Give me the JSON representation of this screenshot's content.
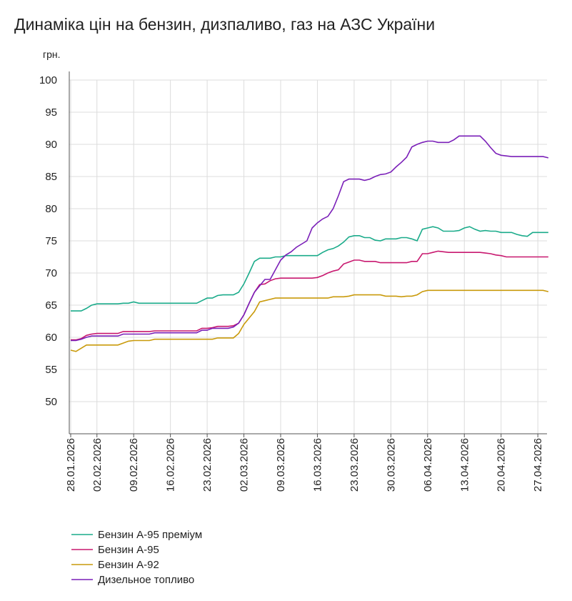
{
  "chart_data": {
    "type": "line",
    "title": "Динаміка цін на бензин, дизпаливо, газ на АЗС України",
    "y_unit": "грн.",
    "categories": [
      "28.01.2026",
      null,
      null,
      null,
      null,
      "02.02.2026",
      null,
      null,
      null,
      null,
      null,
      null,
      "09.02.2026",
      null,
      null,
      null,
      null,
      null,
      null,
      "16.02.2026",
      null,
      null,
      null,
      null,
      null,
      null,
      "23.02.2026",
      null,
      null,
      null,
      null,
      null,
      null,
      "02.03.2026",
      null,
      null,
      null,
      null,
      null,
      null,
      "09.03.2026",
      null,
      null,
      null,
      null,
      null,
      null,
      "16.03.2026",
      null,
      null,
      null,
      null,
      null,
      null,
      "23.03.2026",
      null,
      null,
      null,
      null,
      null,
      null,
      "30.03.2026",
      null,
      null,
      null,
      null,
      null,
      null,
      "06.04.2026",
      null,
      null,
      null,
      null,
      null,
      null,
      "13.04.2026",
      null,
      null,
      null,
      null,
      null,
      null,
      "20.04.2026",
      null,
      null,
      null,
      null,
      null,
      null,
      "27.04.2026",
      null,
      null
    ],
    "series": [
      {
        "name": "Бензин А-95 преміум",
        "color": "#1aab8a",
        "values": [
          64.1,
          64.1,
          64.1,
          64.5,
          65,
          65.2,
          65.2,
          65.2,
          65.2,
          65.2,
          65.3,
          65.3,
          65.5,
          65.3,
          65.3,
          65.3,
          65.3,
          65.3,
          65.3,
          65.3,
          65.3,
          65.3,
          65.3,
          65.3,
          65.3,
          65.7,
          66.1,
          66.1,
          66.5,
          66.6,
          66.6,
          66.6,
          67,
          68.3,
          70,
          71.8,
          72.3,
          72.3,
          72.3,
          72.5,
          72.5,
          72.7,
          72.7,
          72.7,
          72.7,
          72.7,
          72.7,
          72.7,
          73.2,
          73.6,
          73.8,
          74.2,
          74.8,
          75.6,
          75.8,
          75.8,
          75.5,
          75.5,
          75.1,
          75,
          75.3,
          75.3,
          75.3,
          75.5,
          75.5,
          75.3,
          75,
          76.8,
          77,
          77.2,
          77,
          76.5,
          76.5,
          76.5,
          76.6,
          77,
          77.2,
          76.8,
          76.5,
          76.6,
          76.5,
          76.5,
          76.3,
          76.3,
          76.3,
          76,
          75.8,
          75.7,
          76.3,
          76.3,
          76.3,
          76.3
        ]
      },
      {
        "name": "Бензин А-95",
        "color": "#c8186f",
        "values": [
          59.6,
          59.6,
          59.8,
          60.3,
          60.5,
          60.6,
          60.6,
          60.6,
          60.6,
          60.6,
          60.9,
          60.9,
          60.9,
          60.9,
          60.9,
          60.9,
          61,
          61,
          61,
          61,
          61,
          61,
          61,
          61,
          61,
          61.4,
          61.4,
          61.5,
          61.7,
          61.7,
          61.7,
          61.8,
          62.2,
          63.5,
          65.3,
          67,
          68.2,
          68.3,
          68.8,
          69.1,
          69.2,
          69.2,
          69.2,
          69.2,
          69.2,
          69.2,
          69.2,
          69.3,
          69.6,
          70,
          70.3,
          70.5,
          71.4,
          71.7,
          72,
          72,
          71.8,
          71.8,
          71.8,
          71.6,
          71.6,
          71.6,
          71.6,
          71.6,
          71.6,
          71.8,
          71.8,
          73,
          73,
          73.2,
          73.4,
          73.3,
          73.2,
          73.2,
          73.2,
          73.2,
          73.2,
          73.2,
          73.2,
          73.1,
          73,
          72.8,
          72.7,
          72.5,
          72.5,
          72.5,
          72.5,
          72.5,
          72.5,
          72.5,
          72.5,
          72.5
        ]
      },
      {
        "name": "Бензин А-92",
        "color": "#c99a0b",
        "values": [
          58,
          57.8,
          58.3,
          58.8,
          58.8,
          58.8,
          58.8,
          58.8,
          58.8,
          58.8,
          59.1,
          59.4,
          59.5,
          59.5,
          59.5,
          59.5,
          59.7,
          59.7,
          59.7,
          59.7,
          59.7,
          59.7,
          59.7,
          59.7,
          59.7,
          59.7,
          59.7,
          59.7,
          59.9,
          59.9,
          59.9,
          59.9,
          60.6,
          62,
          63,
          64,
          65.5,
          65.7,
          65.9,
          66.1,
          66.1,
          66.1,
          66.1,
          66.1,
          66.1,
          66.1,
          66.1,
          66.1,
          66.1,
          66.1,
          66.3,
          66.3,
          66.3,
          66.4,
          66.6,
          66.6,
          66.6,
          66.6,
          66.6,
          66.6,
          66.4,
          66.4,
          66.4,
          66.3,
          66.4,
          66.4,
          66.6,
          67.1,
          67.3,
          67.3,
          67.3,
          67.3,
          67.3,
          67.3,
          67.3,
          67.3,
          67.3,
          67.3,
          67.3,
          67.3,
          67.3,
          67.3,
          67.3,
          67.3,
          67.3,
          67.3,
          67.3,
          67.3,
          67.3,
          67.3,
          67.3,
          67.1
        ]
      },
      {
        "name": "Дизельное топливо",
        "color": "#7a1fb8",
        "values": [
          59.5,
          59.5,
          59.7,
          60,
          60.2,
          60.2,
          60.2,
          60.2,
          60.2,
          60.2,
          60.5,
          60.5,
          60.5,
          60.5,
          60.5,
          60.5,
          60.7,
          60.7,
          60.7,
          60.7,
          60.7,
          60.7,
          60.7,
          60.7,
          60.7,
          61.1,
          61.1,
          61.4,
          61.4,
          61.4,
          61.4,
          61.6,
          62.2,
          63.5,
          65.3,
          67,
          68,
          69,
          69,
          70.5,
          72,
          72.8,
          73.3,
          74,
          74.5,
          75,
          77,
          77.8,
          78.4,
          78.8,
          80,
          82,
          84.2,
          84.6,
          84.6,
          84.6,
          84.4,
          84.6,
          85,
          85.3,
          85.4,
          85.7,
          86.5,
          87.2,
          88,
          89.6,
          90,
          90.3,
          90.5,
          90.5,
          90.3,
          90.3,
          90.3,
          90.7,
          91.3,
          91.3,
          91.3,
          91.3,
          91.3,
          90.5,
          89.5,
          88.6,
          88.3,
          88.2,
          88.1,
          88.1,
          88.1,
          88.1,
          88.1,
          88.1,
          88.1,
          87.9
        ]
      }
    ],
    "ylim": [
      45,
      100
    ],
    "yticks": [
      50,
      55,
      60,
      65,
      70,
      75,
      80,
      85,
      90,
      95,
      100
    ],
    "grid": true
  }
}
